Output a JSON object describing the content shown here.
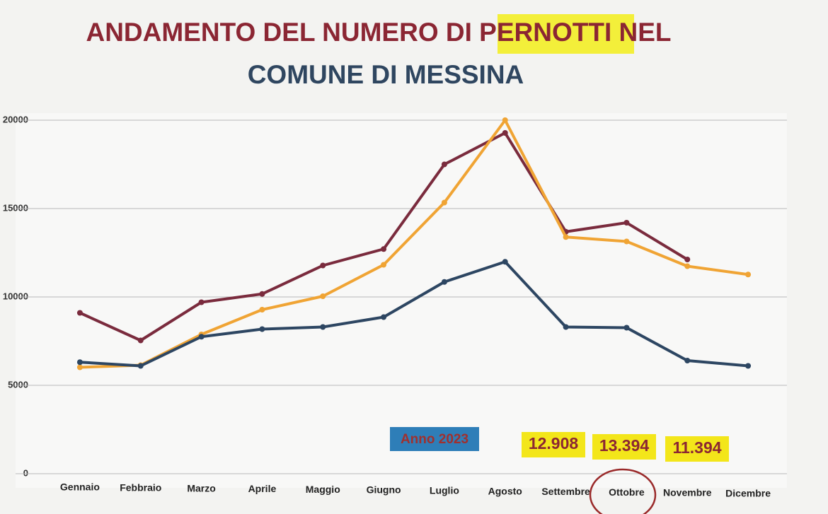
{
  "chart_data": {
    "type": "line",
    "title": "ANDAMENTO DEL NUMERO DI PERNOTTI NEL",
    "subtitle": "COMUNE DI MESSINA",
    "annotations": [
      "Anno 2023",
      "12.908",
      "13.394",
      "11.394"
    ],
    "categories": [
      "Gennaio",
      "Febbraio",
      "Marzo",
      "Aprile",
      "Maggio",
      "Giugno",
      "Luglio",
      "Agosto",
      "Settembre",
      "Ottobre",
      "Novembre",
      "Dicembre"
    ],
    "series": [
      {
        "color": "#7a2b3d",
        "values": [
          9100,
          7540,
          9700,
          10170,
          11780,
          12710,
          17500,
          19280,
          13690,
          14200,
          12120,
          null
        ]
      },
      {
        "color": "#f0a434",
        "values": [
          6020,
          6140,
          7880,
          9280,
          10040,
          11820,
          15340,
          20000,
          13390,
          13140,
          11740,
          11270
        ]
      },
      {
        "color": "#2d4662",
        "values": [
          6310,
          6100,
          7750,
          8180,
          8300,
          8860,
          10850,
          11990,
          8300,
          8260,
          6400,
          6100
        ]
      }
    ],
    "ylim": [
      0,
      20000
    ],
    "yticks": [
      0,
      5000,
      10000,
      15000,
      20000
    ],
    "grid": true
  }
}
